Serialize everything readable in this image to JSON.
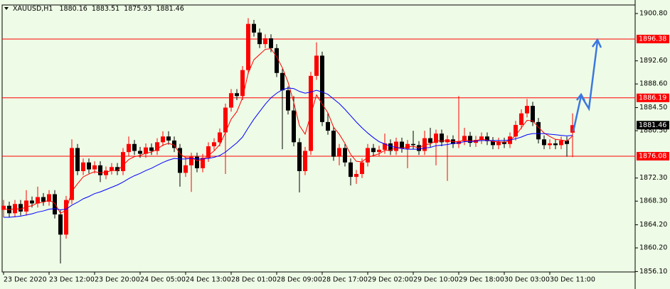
{
  "chart_data": {
    "type": "candlestick",
    "symbol": "XAUUSD,H1",
    "background": "#eefbe6",
    "bull_color": "#ff0000",
    "bear_color": "#000000",
    "level_color": "#ff0000",
    "ylim": [
      1856.03,
      1902.28
    ],
    "yticks": [
      {
        "value": 1900.8,
        "label": "1900.80"
      },
      {
        "value": 1892.6,
        "label": "1892.60"
      },
      {
        "value": 1888.6,
        "label": "1888.60"
      },
      {
        "value": 1884.5,
        "label": "1884.50"
      },
      {
        "value": 1880.5,
        "label": "1880.50"
      },
      {
        "value": 1872.3,
        "label": "1872.30"
      },
      {
        "value": 1868.3,
        "label": "1868.30"
      },
      {
        "value": 1864.2,
        "label": "1864.20"
      },
      {
        "value": 1860.2,
        "label": "1860.20"
      },
      {
        "value": 1856.1,
        "label": "1856.10"
      }
    ],
    "levels": [
      1896.38,
      1886.19,
      1876.08
    ],
    "categories": [
      "23 Dec 2020",
      null,
      null,
      null,
      null,
      null,
      null,
      null,
      "23 Dec 12:00",
      null,
      null,
      null,
      null,
      null,
      null,
      null,
      "23 Dec 20:00",
      null,
      null,
      null,
      null,
      null,
      null,
      null,
      "24 Dec 05:00",
      null,
      null,
      null,
      null,
      null,
      null,
      null,
      "24 Dec 13:00",
      null,
      null,
      null,
      null,
      null,
      null,
      null,
      "28 Dec 01:00",
      null,
      null,
      null,
      null,
      null,
      null,
      null,
      "28 Dec 09:00",
      null,
      null,
      null,
      null,
      null,
      null,
      null,
      "28 Dec 17:00",
      null,
      null,
      null,
      null,
      null,
      null,
      null,
      "29 Dec 02:00",
      null,
      null,
      null,
      null,
      null,
      null,
      null,
      "29 Dec 10:00",
      null,
      null,
      null,
      null,
      null,
      null,
      null,
      "29 Dec 18:00",
      null,
      null,
      null,
      null,
      null,
      null,
      null,
      "30 Dec 03:00",
      null,
      null,
      null,
      null,
      null,
      null,
      null,
      "30 Dec 11:00",
      null,
      null,
      null,
      null
    ],
    "open": [
      1866.8,
      1867.5,
      1866.2,
      1867.8,
      1866.5,
      1868.4,
      1867.9,
      1869.0,
      1868.2,
      1869.5,
      1866.0,
      1862.5,
      1868.5,
      1877.5,
      1873.5,
      1875.0,
      1873.8,
      1874.5,
      1872.8,
      1873.6,
      1874.2,
      1873.5,
      1876.8,
      1878.2,
      1877.0,
      1876.5,
      1877.6,
      1877.0,
      1878.5,
      1879.5,
      1878.8,
      1877.5,
      1873.2,
      1874.5,
      1876.0,
      1874.0,
      1875.8,
      1877.8,
      1878.5,
      1880.2,
      1884.5,
      1887.0,
      1886.5,
      1891.0,
      1899.0,
      1897.5,
      1895.5,
      1896.5,
      1894.8,
      1890.5,
      1887.5,
      1884.0,
      1878.5,
      1873.5,
      1877.0,
      1890.0,
      1893.5,
      1882.0,
      1880.5,
      1876.0,
      1877.5,
      1875.0,
      1872.5,
      1873.0,
      1875.0,
      1877.5,
      1876.8,
      1877.2,
      1878.3,
      1877.0,
      1878.6,
      1877.4,
      1878.2,
      1878.0,
      1877.0,
      1879.2,
      1878.4,
      1880.0,
      1878.5,
      1879.0,
      1878.2,
      1878.7,
      1879.6,
      1878.4,
      1878.9,
      1879.5,
      1878.7,
      1878.0,
      1878.6,
      1878.2,
      1879.5,
      1881.5,
      1883.5,
      1884.8,
      1882.0,
      1879.0,
      1878.0,
      1878.3,
      1878.0,
      1878.8,
      1880.16
    ],
    "high": [
      1868.5,
      1868.2,
      1868.5,
      1868.5,
      1870.2,
      1869.1,
      1870.8,
      1869.7,
      1870.2,
      1870.2,
      1866.7,
      1869.2,
      1879.0,
      1878.2,
      1875.7,
      1875.7,
      1875.2,
      1875.2,
      1874.3,
      1874.9,
      1874.9,
      1877.5,
      1879.5,
      1878.9,
      1877.7,
      1878.3,
      1878.3,
      1879.2,
      1880.4,
      1880.4,
      1879.5,
      1878.2,
      1876.0,
      1876.7,
      1876.7,
      1876.5,
      1878.5,
      1879.2,
      1880.9,
      1885.2,
      1887.7,
      1887.7,
      1891.7,
      1900.0,
      1899.7,
      1898.2,
      1897.2,
      1897.2,
      1895.5,
      1891.2,
      1888.2,
      1886.5,
      1879.2,
      1877.7,
      1890.7,
      1895.8,
      1894.2,
      1883.5,
      1881.2,
      1878.2,
      1878.2,
      1875.7,
      1873.7,
      1875.7,
      1878.2,
      1878.2,
      1877.9,
      1880.0,
      1879.0,
      1879.3,
      1879.3,
      1878.9,
      1880.5,
      1878.7,
      1880.5,
      1881.0,
      1880.7,
      1880.7,
      1879.7,
      1879.7,
      1886.5,
      1881.0,
      1880.3,
      1879.6,
      1880.2,
      1880.2,
      1879.4,
      1879.3,
      1879.3,
      1880.2,
      1882.2,
      1884.2,
      1886.0,
      1885.5,
      1882.7,
      1879.7,
      1879.0,
      1879.0,
      1879.5,
      1879.5,
      1883.51
    ],
    "low": [
      1865.5,
      1865.5,
      1865.5,
      1865.8,
      1865.8,
      1867.2,
      1867.2,
      1867.5,
      1867.5,
      1865.3,
      1857.5,
      1861.8,
      1867.8,
      1872.8,
      1872.8,
      1873.1,
      1873.1,
      1871.6,
      1872.1,
      1872.9,
      1872.8,
      1872.8,
      1876.1,
      1876.3,
      1875.8,
      1875.8,
      1876.3,
      1876.3,
      1877.8,
      1878.1,
      1876.8,
      1870.8,
      1872.5,
      1869.9,
      1873.3,
      1873.3,
      1875.1,
      1877.1,
      1877.8,
      1873.0,
      1883.8,
      1885.8,
      1885.8,
      1890.3,
      1896.8,
      1894.8,
      1894.8,
      1894.1,
      1889.8,
      1877.3,
      1883.3,
      1877.8,
      1869.8,
      1872.8,
      1876.3,
      1889.3,
      1881.3,
      1879.8,
      1875.3,
      1874.5,
      1874.3,
      1871.0,
      1871.3,
      1872.3,
      1874.3,
      1876.1,
      1876.1,
      1876.5,
      1876.3,
      1876.3,
      1876.7,
      1874.0,
      1877.3,
      1876.3,
      1876.3,
      1877.7,
      1874.5,
      1877.8,
      1871.8,
      1877.5,
      1877.5,
      1878.0,
      1877.7,
      1877.7,
      1878.2,
      1878.0,
      1877.3,
      1877.3,
      1877.5,
      1877.5,
      1878.8,
      1880.8,
      1882.8,
      1881.3,
      1878.3,
      1877.3,
      1877.3,
      1877.3,
      1877.3,
      1876.0,
      1875.93
    ],
    "close": [
      1867.5,
      1866.2,
      1867.8,
      1866.5,
      1868.4,
      1867.9,
      1869.0,
      1868.2,
      1869.5,
      1866.0,
      1862.5,
      1868.5,
      1877.5,
      1873.5,
      1875.0,
      1873.8,
      1874.5,
      1872.8,
      1873.6,
      1874.2,
      1873.5,
      1876.8,
      1878.2,
      1877.0,
      1876.5,
      1877.6,
      1877.0,
      1878.5,
      1879.5,
      1878.8,
      1877.5,
      1873.2,
      1874.5,
      1876.0,
      1874.0,
      1875.8,
      1877.8,
      1878.5,
      1880.2,
      1884.5,
      1887.0,
      1886.5,
      1891.0,
      1899.0,
      1897.5,
      1895.5,
      1896.5,
      1894.8,
      1890.5,
      1887.5,
      1884.0,
      1878.5,
      1873.5,
      1877.0,
      1890.0,
      1893.5,
      1882.0,
      1880.5,
      1876.0,
      1877.5,
      1875.0,
      1872.5,
      1873.0,
      1875.0,
      1877.5,
      1876.8,
      1877.2,
      1878.3,
      1877.0,
      1878.6,
      1877.4,
      1878.2,
      1878.0,
      1877.0,
      1879.2,
      1878.4,
      1880.0,
      1878.5,
      1879.0,
      1878.2,
      1878.7,
      1879.6,
      1878.4,
      1878.9,
      1879.5,
      1878.7,
      1878.0,
      1878.6,
      1878.2,
      1879.5,
      1881.5,
      1883.5,
      1884.8,
      1882.0,
      1879.0,
      1878.0,
      1878.3,
      1878.0,
      1878.8,
      1878.2,
      1881.46
    ],
    "ma": [
      {
        "color": "#ff0000",
        "values": [
          1867.0,
          1866.8,
          1867.0,
          1866.9,
          1867.3,
          1867.5,
          1868.0,
          1868.1,
          1868.5,
          1867.9,
          1866.2,
          1866.7,
          1870.0,
          1871.3,
          1872.5,
          1873.0,
          1873.4,
          1873.2,
          1873.3,
          1873.6,
          1873.6,
          1874.5,
          1875.5,
          1876.0,
          1876.2,
          1876.6,
          1876.8,
          1877.3,
          1878.0,
          1878.3,
          1878.0,
          1876.5,
          1875.8,
          1875.9,
          1875.3,
          1875.5,
          1876.2,
          1877.0,
          1878.1,
          1880.2,
          1882.5,
          1883.8,
          1886.2,
          1890.5,
          1892.8,
          1893.7,
          1894.6,
          1894.7,
          1893.3,
          1891.4,
          1888.9,
          1885.4,
          1881.4,
          1879.9,
          1883.3,
          1886.7,
          1885.1,
          1883.6,
          1881.1,
          1879.9,
          1878.3,
          1876.4,
          1875.2,
          1875.1,
          1875.9,
          1876.2,
          1876.5,
          1877.1,
          1877.1,
          1877.6,
          1877.5,
          1877.7,
          1877.8,
          1877.5,
          1878.1,
          1878.2,
          1878.8,
          1878.7,
          1878.8,
          1878.6,
          1878.6,
          1878.9,
          1878.7,
          1878.8,
          1879.0,
          1878.9,
          1878.6,
          1878.6,
          1878.5,
          1878.8,
          1879.7,
          1881.0,
          1882.3,
          1882.2,
          1881.1,
          1880.1,
          1879.5,
          1879.0,
          1878.9,
          1878.7,
          1879.6
        ]
      },
      {
        "color": "#0000ff",
        "values": [
          1865.5,
          1865.5,
          1865.6,
          1865.7,
          1865.9,
          1866.1,
          1866.4,
          1866.6,
          1866.9,
          1867.0,
          1866.8,
          1866.9,
          1867.6,
          1868.1,
          1868.7,
          1869.1,
          1869.6,
          1869.9,
          1870.3,
          1870.7,
          1871.1,
          1871.6,
          1872.2,
          1872.7,
          1873.1,
          1873.6,
          1874.0,
          1874.5,
          1875.0,
          1875.4,
          1875.7,
          1875.6,
          1875.6,
          1875.7,
          1875.6,
          1875.6,
          1875.7,
          1875.9,
          1876.2,
          1876.8,
          1877.6,
          1878.4,
          1879.4,
          1881.0,
          1882.5,
          1883.8,
          1885.1,
          1886.2,
          1887.0,
          1887.6,
          1887.9,
          1887.8,
          1887.3,
          1887.0,
          1887.2,
          1887.5,
          1887.2,
          1886.8,
          1886.0,
          1885.2,
          1884.2,
          1883.1,
          1882.0,
          1881.0,
          1880.1,
          1879.3,
          1878.6,
          1878.2,
          1877.8,
          1877.6,
          1877.4,
          1877.3,
          1877.3,
          1877.3,
          1877.5,
          1877.6,
          1877.9,
          1878.0,
          1878.1,
          1878.3,
          1878.4,
          1878.6,
          1878.6,
          1878.7,
          1878.8,
          1878.8,
          1878.8,
          1878.8,
          1878.8,
          1878.9,
          1879.1,
          1879.4,
          1879.8,
          1880.0,
          1880.0,
          1880.0,
          1879.9,
          1879.8,
          1879.7,
          1879.6,
          1879.7
        ]
      }
    ]
  }
}
